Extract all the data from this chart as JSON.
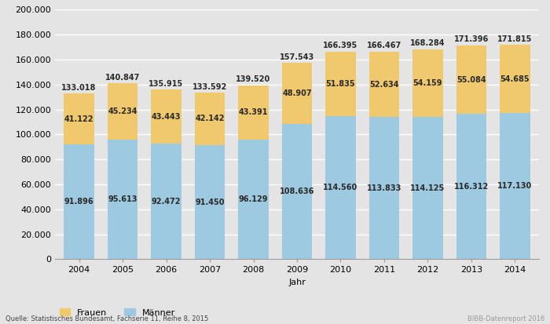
{
  "years": [
    "2004",
    "2005",
    "2006",
    "2007",
    "2008",
    "2009",
    "2010",
    "2011",
    "2012",
    "2013",
    "2014"
  ],
  "frauen": [
    41122,
    45234,
    43443,
    42142,
    43391,
    48907,
    51835,
    52634,
    54159,
    55084,
    54685
  ],
  "maenner": [
    91896,
    95613,
    92472,
    91450,
    96129,
    108636,
    114560,
    113833,
    114125,
    116312,
    117130
  ],
  "frauen_labels": [
    "41.122",
    "45.234",
    "43.443",
    "42.142",
    "43.391",
    "48.907",
    "51.835",
    "52.634",
    "54.159",
    "55.084",
    "54.685"
  ],
  "maenner_labels": [
    "91.896",
    "95.613",
    "92.472",
    "91.450",
    "96.129",
    "108.636",
    "114.560",
    "113.833",
    "114.125",
    "116.312",
    "117.130"
  ],
  "total_labels": [
    "133.018",
    "140.847",
    "135.915",
    "133.592",
    "139.520",
    "157.543",
    "166.395",
    "166.467",
    "168.284",
    "171.396",
    "171.815"
  ],
  "frauen_color": "#f0c96e",
  "maenner_color": "#9ecae1",
  "background_color": "#e4e4e4",
  "plot_bg_color": "#e4e4e4",
  "xlabel": "Jahr",
  "ylim": [
    0,
    200000
  ],
  "yticks": [
    0,
    20000,
    40000,
    60000,
    80000,
    100000,
    120000,
    140000,
    160000,
    180000,
    200000
  ],
  "ytick_labels": [
    "0",
    "20.000",
    "40.000",
    "60.000",
    "80.000",
    "100.000",
    "120.000",
    "140.000",
    "160.000",
    "180.000",
    "200.000"
  ],
  "legend_frauen": "Frauen",
  "legend_maenner": "Männer",
  "source_text": "Quelle: Statistisches Bundesamt, Fachserie 11, Reihe 8, 2015",
  "bibb_text": "BIBB-Datenreport 2016",
  "label_fontsize": 7,
  "axis_fontsize": 8,
  "legend_fontsize": 8,
  "bar_width": 0.7
}
